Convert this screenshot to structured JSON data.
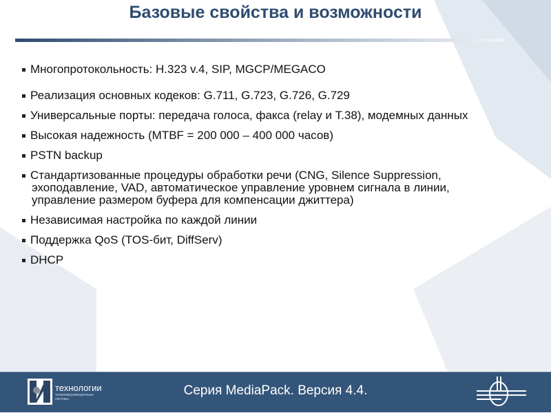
{
  "slide": {
    "title": "Базовые свойства и возможности",
    "bullets": [
      "Многопротокольность: H.323 v.4, SIP, MGCP/MEGACO",
      "Реализация основных кодеков: G.711, G.723, G.726, G.729",
      "Универсальные порты: передача голоса, факса (relay и T.38), модемных данных",
      "Высокая надежность (MTBF = 200 000 – 400 000 часов)",
      "PSTN backup",
      "Стандартизованные процедуры обработки речи (CNG, Silence Suppression, эхоподавление, VAD, автоматическое управление уровнем сигнала в линии, управление размером буфера для компенсации джиттера)",
      "Независимая настройка по каждой линии",
      "Поддержка QoS (TOS-бит, DiffServ)",
      "DHCP"
    ]
  },
  "footer": {
    "text": "Серия MediaPack. Версия 4.4.",
    "logo_text": "технологии",
    "logo_subtext": "телекоммуникационные системы"
  },
  "colors": {
    "title": "#2f4c70",
    "footer_bg": "#34557a"
  }
}
